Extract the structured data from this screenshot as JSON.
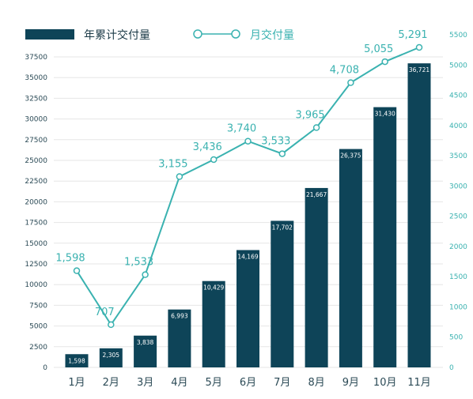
{
  "chart_data": {
    "type": "bar+line",
    "categories": [
      "1月",
      "2月",
      "3月",
      "4月",
      "5月",
      "6月",
      "7月",
      "8月",
      "9月",
      "10月",
      "11月"
    ],
    "series": [
      {
        "name": "年累计交付量",
        "type": "bar",
        "axis": "left",
        "values": [
          1598,
          2305,
          3838,
          6993,
          10429,
          14169,
          17702,
          21667,
          26375,
          31430,
          36721
        ],
        "labels": [
          "1,598",
          "2,305",
          "3,838",
          "6,993",
          "10,429",
          "14,169",
          "17,702",
          "21,667",
          "26,375",
          "31,430",
          "36,721"
        ]
      },
      {
        "name": "月交付量",
        "type": "line",
        "axis": "right",
        "values": [
          1598,
          707,
          1533,
          3155,
          3436,
          3740,
          3533,
          3965,
          4708,
          5055,
          5291
        ],
        "labels": [
          "1,598",
          "707",
          "1,533",
          "3,155",
          "3,436",
          "3,740",
          "3,533",
          "3,965",
          "4,708",
          "5,055",
          "5,291"
        ]
      }
    ],
    "y_left": {
      "range": [
        0,
        37500
      ],
      "ticks": [
        "0",
        "2500",
        "5000",
        "7500",
        "10000",
        "12500",
        "15000",
        "17500",
        "20000",
        "22500",
        "25000",
        "27500",
        "30000",
        "32500",
        "35000",
        "37500"
      ]
    },
    "y_right": {
      "range": [
        0,
        5500
      ],
      "ticks": [
        "0",
        "500",
        "1000",
        "1500",
        "2000",
        "2500",
        "3000",
        "3500",
        "4000",
        "4500",
        "5000",
        "5500"
      ]
    },
    "grid": true,
    "legend_position": "top-left",
    "colors": {
      "bar": "#0e4458",
      "line": "#3ab2b0",
      "grid": "#e6e6e6",
      "left_axis_text": "#2b4a56"
    }
  }
}
